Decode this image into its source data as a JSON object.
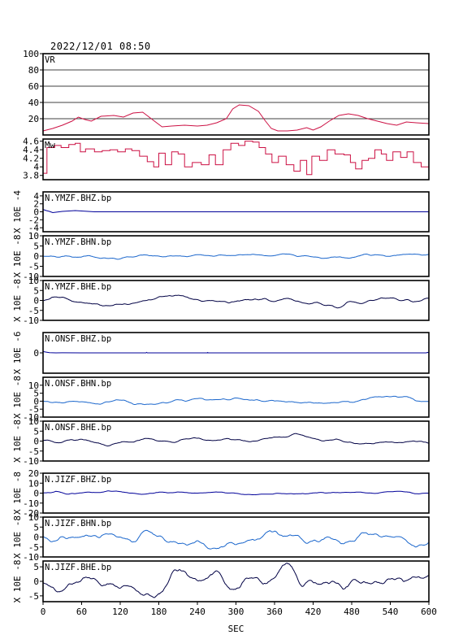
{
  "header": {
    "timestamp": "2022/12/01 08:50"
  },
  "chart_data": {
    "type": "line",
    "xlabel": "SEC",
    "x_ticks": [
      0,
      60,
      120,
      180,
      240,
      300,
      360,
      420,
      480,
      540,
      600
    ],
    "xlim": [
      0,
      600
    ],
    "panels": [
      {
        "name": "VR",
        "label": "VR",
        "ylabel": "",
        "color": "#cc1144",
        "ylim": [
          0,
          100
        ],
        "yticks": [
          20,
          40,
          60,
          80,
          100
        ],
        "grid": true,
        "points": [
          [
            0,
            5
          ],
          [
            15,
            8
          ],
          [
            30,
            12
          ],
          [
            45,
            17
          ],
          [
            55,
            22
          ],
          [
            65,
            19
          ],
          [
            75,
            17
          ],
          [
            90,
            23
          ],
          [
            110,
            24
          ],
          [
            125,
            22
          ],
          [
            140,
            27
          ],
          [
            155,
            28
          ],
          [
            165,
            22
          ],
          [
            175,
            16
          ],
          [
            185,
            10
          ],
          [
            200,
            11
          ],
          [
            220,
            12
          ],
          [
            240,
            11
          ],
          [
            255,
            12
          ],
          [
            270,
            15
          ],
          [
            285,
            20
          ],
          [
            295,
            32
          ],
          [
            305,
            37
          ],
          [
            320,
            36
          ],
          [
            335,
            29
          ],
          [
            345,
            18
          ],
          [
            355,
            8
          ],
          [
            365,
            5
          ],
          [
            380,
            5
          ],
          [
            395,
            6
          ],
          [
            410,
            9
          ],
          [
            420,
            6
          ],
          [
            432,
            10
          ],
          [
            445,
            17
          ],
          [
            460,
            24
          ],
          [
            475,
            26
          ],
          [
            490,
            24
          ],
          [
            505,
            20
          ],
          [
            520,
            17
          ],
          [
            535,
            14
          ],
          [
            550,
            12
          ],
          [
            565,
            16
          ],
          [
            580,
            15
          ],
          [
            600,
            14
          ]
        ]
      },
      {
        "name": "Mw",
        "label": "Mw",
        "ylabel": "",
        "color": "#cc1144",
        "ylim": [
          3.7,
          4.65
        ],
        "yticks": [
          3.8,
          4.0,
          4.2,
          4.4,
          4.6
        ],
        "step": true,
        "points": [
          [
            0,
            3.85
          ],
          [
            6,
            4.45
          ],
          [
            18,
            4.5
          ],
          [
            28,
            4.45
          ],
          [
            40,
            4.52
          ],
          [
            50,
            4.55
          ],
          [
            58,
            4.35
          ],
          [
            66,
            4.42
          ],
          [
            80,
            4.35
          ],
          [
            92,
            4.38
          ],
          [
            104,
            4.4
          ],
          [
            116,
            4.35
          ],
          [
            128,
            4.42
          ],
          [
            138,
            4.38
          ],
          [
            150,
            4.25
          ],
          [
            162,
            4.12
          ],
          [
            172,
            4.0
          ],
          [
            180,
            4.32
          ],
          [
            190,
            4.05
          ],
          [
            200,
            4.35
          ],
          [
            210,
            4.3
          ],
          [
            220,
            4.0
          ],
          [
            232,
            4.1
          ],
          [
            246,
            4.05
          ],
          [
            258,
            4.28
          ],
          [
            268,
            4.05
          ],
          [
            280,
            4.4
          ],
          [
            292,
            4.55
          ],
          [
            304,
            4.5
          ],
          [
            314,
            4.6
          ],
          [
            326,
            4.58
          ],
          [
            336,
            4.45
          ],
          [
            346,
            4.3
          ],
          [
            356,
            4.1
          ],
          [
            366,
            4.25
          ],
          [
            378,
            4.05
          ],
          [
            390,
            3.9
          ],
          [
            400,
            4.15
          ],
          [
            410,
            3.82
          ],
          [
            418,
            4.25
          ],
          [
            430,
            4.15
          ],
          [
            442,
            4.4
          ],
          [
            454,
            4.3
          ],
          [
            468,
            4.28
          ],
          [
            478,
            4.1
          ],
          [
            486,
            3.95
          ],
          [
            496,
            4.15
          ],
          [
            506,
            4.2
          ],
          [
            516,
            4.4
          ],
          [
            526,
            4.3
          ],
          [
            534,
            4.15
          ],
          [
            544,
            4.35
          ],
          [
            556,
            4.22
          ],
          [
            566,
            4.35
          ],
          [
            576,
            4.1
          ],
          [
            588,
            4.0
          ],
          [
            600,
            3.92
          ]
        ]
      },
      {
        "name": "N.YMZF.BHZ.bp",
        "label": "N.YMZF.BHZ.bp",
        "ylabel": "X 10E -4",
        "color": "#000099",
        "ylim": [
          -5,
          5
        ],
        "yticks": [
          -4,
          -2,
          0,
          2,
          4
        ],
        "points": [
          [
            0,
            0.6
          ],
          [
            5,
            0.3
          ],
          [
            10,
            0.1
          ],
          [
            15,
            -0.2
          ],
          [
            20,
            -0.1
          ],
          [
            30,
            0.1
          ],
          [
            40,
            0.2
          ],
          [
            50,
            0.3
          ],
          [
            60,
            0.2
          ],
          [
            70,
            0.1
          ],
          [
            80,
            0
          ],
          [
            100,
            0
          ],
          [
            140,
            0
          ],
          [
            200,
            0
          ],
          [
            300,
            0
          ],
          [
            400,
            0
          ],
          [
            500,
            0
          ],
          [
            600,
            0
          ]
        ]
      },
      {
        "name": "N.YMZF.BHN.bp",
        "label": "N.YMZF.BHN.bp",
        "ylabel": "X 10E -8",
        "color": "#1a66cc",
        "ylim": [
          -10,
          10
        ],
        "yticks": [
          -10,
          -5,
          0,
          5,
          10
        ],
        "noise": 0.5
      },
      {
        "name": "N.YMZF.BHE.bp",
        "label": "N.YMZF.BHE.bp",
        "ylabel": "X 10E -8",
        "color": "#000044",
        "ylim": [
          -10,
          10
        ],
        "yticks": [
          -10,
          -5,
          0,
          5,
          10
        ],
        "noise": 0.7
      },
      {
        "name": "N.ONSF.BHZ.bp",
        "label": "N.ONSF.BHZ.bp",
        "ylabel": "X 10E -6",
        "color": "#000099",
        "ylim": [
          -4,
          4
        ],
        "yticks": [
          0
        ],
        "points": [
          [
            0,
            0.25
          ],
          [
            5,
            0.15
          ],
          [
            10,
            0.05
          ],
          [
            20,
            0
          ],
          [
            30,
            0.02
          ],
          [
            60,
            0
          ],
          [
            160,
            0
          ],
          [
            161,
            0.1
          ],
          [
            162,
            0
          ],
          [
            255,
            0
          ],
          [
            256,
            0.08
          ],
          [
            257,
            0
          ],
          [
            400,
            0
          ],
          [
            596,
            0
          ],
          [
            598,
            0.1
          ],
          [
            600,
            0
          ]
        ]
      },
      {
        "name": "N.ONSF.BHN.bp",
        "label": "N.ONSF.BHN.bp",
        "ylabel": "X 10E -8",
        "color": "#1a66cc",
        "ylim": [
          -10,
          15
        ],
        "yticks": [
          -10,
          -5,
          0,
          5,
          10
        ],
        "noise": 0.7
      },
      {
        "name": "N.ONSF.BHE.bp",
        "label": "N.ONSF.BHE.bp",
        "ylabel": "X 10E -8",
        "color": "#000044",
        "ylim": [
          -10,
          10
        ],
        "yticks": [
          -10,
          -5,
          0,
          5,
          10
        ],
        "noise": 0.6
      },
      {
        "name": "N.JIZF.BHZ.bp",
        "label": "N.JIZF.BHZ.bp",
        "ylabel": "X 10E -8",
        "color": "#000099",
        "ylim": [
          -20,
          20
        ],
        "yticks": [
          -20,
          -10,
          0,
          10,
          20
        ],
        "noise": 0.6,
        "points": [
          [
            0,
            0
          ],
          [
            10,
            1
          ],
          [
            20,
            3
          ],
          [
            30,
            2
          ],
          [
            40,
            0
          ],
          [
            50,
            0
          ],
          [
            600,
            0
          ]
        ]
      },
      {
        "name": "N.JIZF.BHN.bp",
        "label": "N.JIZF.BHN.bp",
        "ylabel": "X 10E -8",
        "color": "#1a66cc",
        "ylim": [
          -10,
          10
        ],
        "yticks": [
          -10,
          -5,
          0,
          5,
          10
        ],
        "noise": 1.5
      },
      {
        "name": "N.JIZF.BHE.bp",
        "label": "N.JIZF.BHE.bp",
        "ylabel": "X 10E -8",
        "color": "#000044",
        "ylim": [
          -7,
          7
        ],
        "yticks": [
          -5,
          0,
          5
        ],
        "noise": 1.3
      }
    ]
  }
}
